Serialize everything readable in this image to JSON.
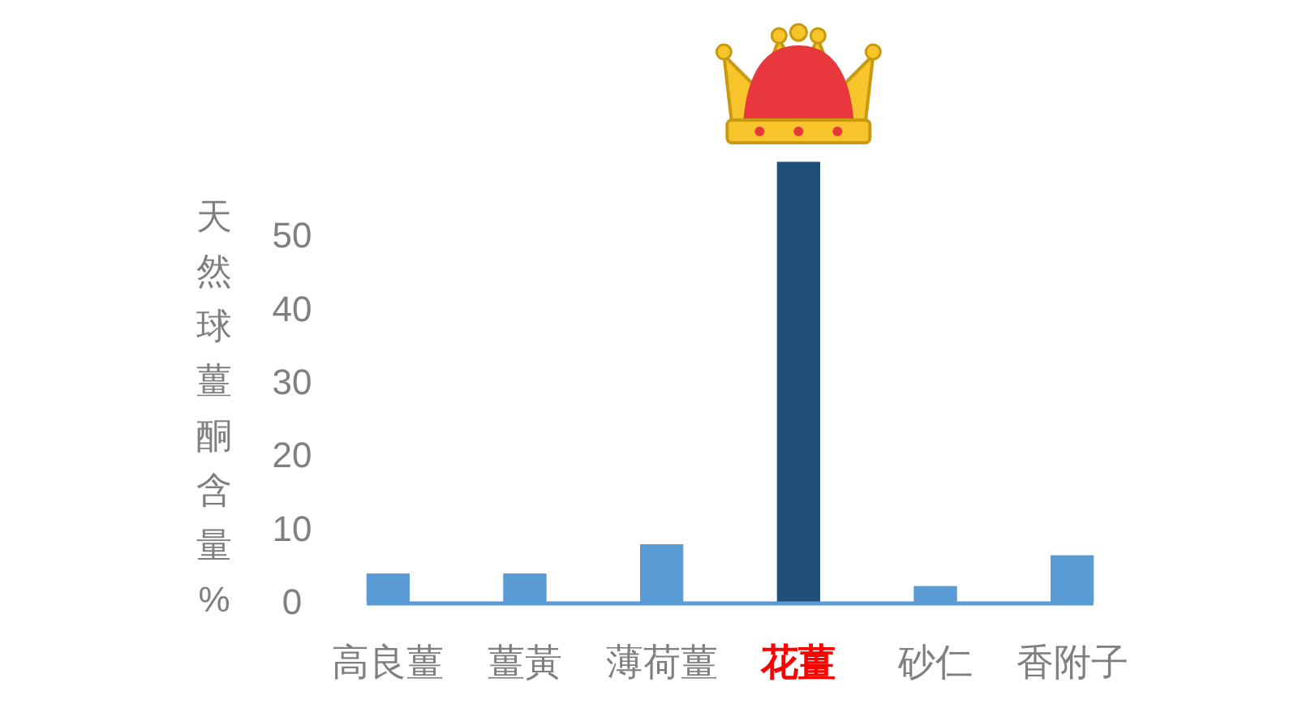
{
  "chart_data": {
    "type": "bar",
    "ylabel": "天然球薑酮含量%",
    "categories": [
      "高良薑",
      "薑黃",
      "薄荷薑",
      "花薑",
      "砂仁",
      "香附子"
    ],
    "values": [
      3.8,
      3.8,
      7.8,
      60,
      2.1,
      6.3
    ],
    "colors": [
      "#5b9bd5",
      "#5b9bd5",
      "#5b9bd5",
      "#1f4e79",
      "#5b9bd5",
      "#5b9bd5"
    ],
    "ylim": [
      0,
      60
    ],
    "yticks": [
      0,
      10,
      20,
      30,
      40,
      50
    ]
  }
}
